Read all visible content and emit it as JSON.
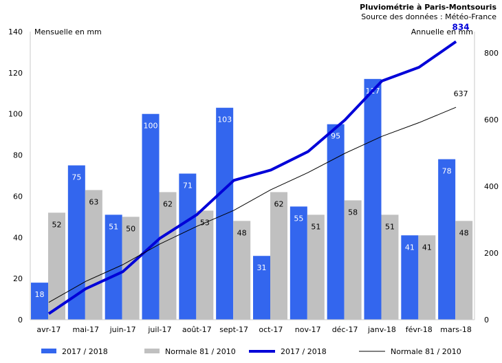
{
  "chart_data": {
    "type": "bar",
    "title": "Pluviométrie à Paris-Montsouris",
    "subtitle": "Source des données : Météo-France",
    "ylabel_left": "Mensuelle en mm",
    "ylabel_right": "Annuelle en mm",
    "categories": [
      "avr-17",
      "mai-17",
      "juin-17",
      "juil-17",
      "août-17",
      "sept-17",
      "oct-17",
      "nov-17",
      "déc-17",
      "janv-18",
      "févr-18",
      "mars-18"
    ],
    "ylim_left": [
      0,
      140
    ],
    "yticks_left": [
      "0",
      "20",
      "40",
      "60",
      "80",
      "100",
      "120",
      "140"
    ],
    "ylim_right": [
      0,
      864
    ],
    "yticks_right": [
      "0",
      "200",
      "400",
      "600",
      "800"
    ],
    "bar_series": [
      {
        "name": "2017 / 2018",
        "color": "#3366ee",
        "values": [
          18,
          75,
          51,
          100,
          71,
          103,
          31,
          55,
          95,
          117,
          41,
          78
        ]
      },
      {
        "name": "Normale 81 / 2010",
        "color": "#c0c0c0",
        "values": [
          52,
          63,
          50,
          62,
          53,
          48,
          62,
          51,
          58,
          51,
          41,
          48
        ]
      }
    ],
    "line_series": [
      {
        "name": "2017 / 2018",
        "color": "#0000d8",
        "values": [
          18,
          93,
          144,
          244,
          315,
          418,
          449,
          504,
          599,
          716,
          757,
          834
        ],
        "end_label": "834"
      },
      {
        "name": "Normale 81 / 2010",
        "color": "#000000",
        "values": [
          52,
          115,
          165,
          227,
          280,
          328,
          390,
          441,
          499,
          550,
          591,
          637
        ],
        "end_label": "637"
      }
    ]
  }
}
